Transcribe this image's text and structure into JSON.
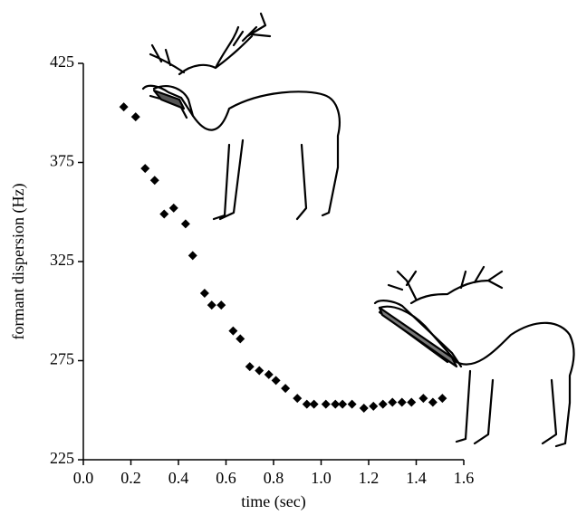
{
  "chart_data": {
    "type": "scatter",
    "x_label": "time (sec)",
    "y_label": "formant dispersion (Hz)",
    "x": [
      0.17,
      0.22,
      0.26,
      0.3,
      0.34,
      0.38,
      0.43,
      0.46,
      0.51,
      0.54,
      0.58,
      0.63,
      0.66,
      0.7,
      0.74,
      0.78,
      0.81,
      0.85,
      0.9,
      0.94,
      0.97,
      1.02,
      1.06,
      1.09,
      1.13,
      1.18,
      1.22,
      1.26,
      1.3,
      1.34,
      1.38,
      1.43,
      1.47,
      1.51
    ],
    "values": [
      403,
      398,
      372,
      366,
      349,
      352,
      344,
      328,
      309,
      303,
      303,
      290,
      286,
      272,
      270,
      268,
      265,
      261,
      256,
      253,
      253,
      253,
      253,
      253,
      253,
      251,
      252,
      253,
      254,
      254,
      254,
      256,
      254,
      256
    ],
    "color": "#000000",
    "xlim": [
      0,
      1.6
    ],
    "xticks": [
      {
        "value": 0,
        "label": "0.0"
      },
      {
        "value": 0.2,
        "label": "0.2"
      },
      {
        "value": 0.4,
        "label": "0.4"
      },
      {
        "value": 0.6,
        "label": "0.6"
      },
      {
        "value": 0.8,
        "label": "0.8"
      },
      {
        "value": 1.0,
        "label": "1.0"
      },
      {
        "value": 1.2,
        "label": "1.2"
      },
      {
        "value": 1.4,
        "label": "1.4"
      },
      {
        "value": 1.6,
        "label": "1.6"
      }
    ],
    "ylim": [
      225,
      425
    ],
    "yticks": [
      225,
      275,
      325,
      375,
      425
    ]
  }
}
